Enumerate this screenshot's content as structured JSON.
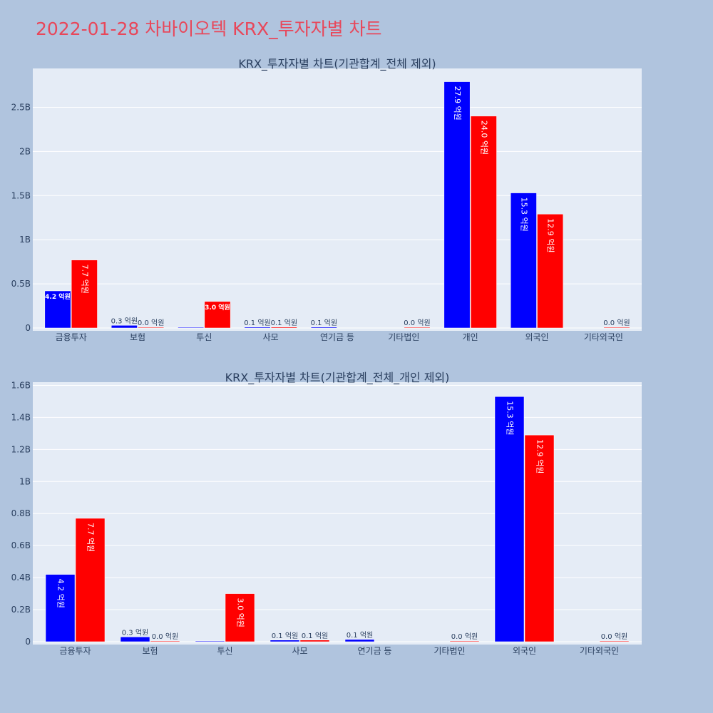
{
  "page": {
    "title": "2022-01-28 차바이오텍 KRX_투자자별 차트",
    "title_color": "#e8475a",
    "background": "#b0c4de",
    "plot_background": "#e5ecf6"
  },
  "chart_data": [
    {
      "type": "bar",
      "title": "KRX_투자자별 차트(기관합계_전체 제외)",
      "categories": [
        "금융투자",
        "보험",
        "투신",
        "사모",
        "연기금 등",
        "기타법인",
        "개인",
        "외국인",
        "기타외국인"
      ],
      "series": [
        {
          "color": "#0000ff",
          "values": [
            0.42,
            0.03,
            0,
            0.01,
            0.01,
            null,
            2.79,
            1.53,
            null
          ],
          "labels": [
            "4.2 억원",
            "0.3 억원",
            "",
            "0.1 억원",
            "0.1 억원",
            "",
            "27.9 억원",
            "15.3 억원",
            ""
          ]
        },
        {
          "color": "#ff0000",
          "values": [
            0.77,
            0.002,
            0.3,
            0.01,
            null,
            0.002,
            2.4,
            1.29,
            0.002
          ],
          "labels": [
            "7.7 억원",
            "0.0 억원",
            "3.0 억원",
            "0.1 억원",
            "",
            "0.0 억원",
            "24.0 억원",
            "12.9 억원",
            "0.0 억원"
          ]
        }
      ],
      "yticks": [
        0,
        0.5,
        1,
        1.5,
        2,
        2.5
      ],
      "ytick_labels": [
        "0",
        "0.5B",
        "1B",
        "1.5B",
        "2B",
        "2.5B"
      ],
      "ylim": [
        0,
        2.94
      ],
      "grid": true
    },
    {
      "type": "bar",
      "title": "KRX_투자자별 차트(기관합계_전체_개인 제외)",
      "categories": [
        "금융투자",
        "보험",
        "투신",
        "사모",
        "연기금 등",
        "기타법인",
        "외국인",
        "기타외국인"
      ],
      "series": [
        {
          "color": "#0000ff",
          "values": [
            0.42,
            0.03,
            0,
            0.01,
            0.014,
            null,
            1.53,
            null
          ],
          "labels": [
            "4.2 억원",
            "0.3 억원",
            "",
            "0.1 억원",
            "0.1 억원",
            "",
            "15.3 억원",
            ""
          ]
        },
        {
          "color": "#ff0000",
          "values": [
            0.77,
            0.002,
            0.3,
            0.01,
            null,
            0.002,
            1.29,
            0.002
          ],
          "labels": [
            "7.7 억원",
            "0.0 억원",
            "3.0 억원",
            "0.1 억원",
            "",
            "0.0 억원",
            "12.9 억원",
            "0.0 억원"
          ]
        }
      ],
      "yticks": [
        0,
        0.2,
        0.4,
        0.6,
        0.8,
        1,
        1.2,
        1.4,
        1.6
      ],
      "ytick_labels": [
        "0",
        "0.2B",
        "0.4B",
        "0.6B",
        "0.8B",
        "1B",
        "1.2B",
        "1.4B",
        "1.6B"
      ],
      "ylim": [
        0,
        1.62
      ],
      "grid": true
    }
  ]
}
